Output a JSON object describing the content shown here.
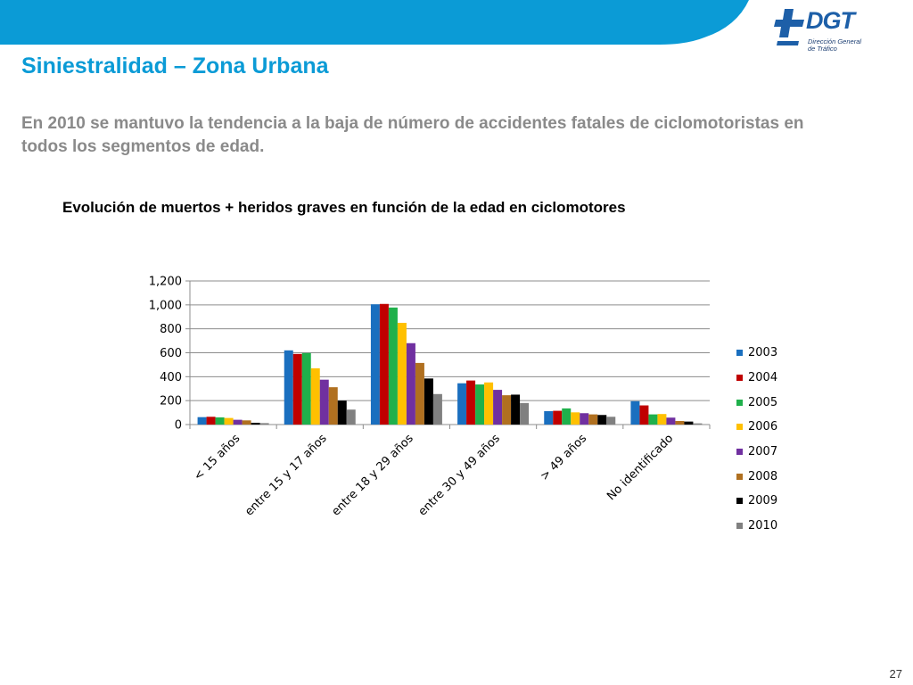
{
  "slide": {
    "title": "Siniestralidad – Zona Urbana",
    "subtitle": "En 2010 se mantuvo la tendencia a la baja de número de accidentes fatales de ciclomotoristas en todos los segmentos de edad.",
    "page_number": "27"
  },
  "logo": {
    "name": "DGT",
    "line1": "Dirección General",
    "line2": "de Tráfico",
    "color": "#1d5fa8"
  },
  "colors": {
    "title": "#0b9bd6",
    "band": "#0b9bd6"
  },
  "chart_data": {
    "type": "bar",
    "title": "Evolución de muertos + heridos graves en función de la edad en ciclomotores",
    "categories": [
      "< 15 años",
      "entre 15 y 17 años",
      "entre 18 y 29 años",
      "entre 30 y 49 años",
      "> 49 años",
      "No identificado"
    ],
    "ylim": [
      0,
      1200
    ],
    "yticks": [
      0,
      200,
      400,
      600,
      800,
      1000,
      1200
    ],
    "ytick_labels": [
      "0",
      "200",
      "400",
      "600",
      "800",
      "1,000",
      "1,200"
    ],
    "grid": true,
    "legend": "right",
    "series": [
      {
        "name": "2003",
        "color": "#1a6fbf",
        "values": [
          62,
          620,
          1005,
          345,
          112,
          195
        ]
      },
      {
        "name": "2004",
        "color": "#c00000",
        "values": [
          65,
          590,
          1008,
          368,
          115,
          160
        ]
      },
      {
        "name": "2005",
        "color": "#1fb04b",
        "values": [
          60,
          598,
          978,
          335,
          135,
          85
        ]
      },
      {
        "name": "2006",
        "color": "#ffc000",
        "values": [
          55,
          470,
          850,
          352,
          102,
          88
        ]
      },
      {
        "name": "2007",
        "color": "#7030a0",
        "values": [
          40,
          375,
          680,
          290,
          95,
          58
        ]
      },
      {
        "name": "2008",
        "color": "#b07020",
        "values": [
          35,
          312,
          515,
          245,
          85,
          30
        ]
      },
      {
        "name": "2009",
        "color": "#000000",
        "values": [
          15,
          200,
          385,
          250,
          80,
          25
        ]
      },
      {
        "name": "2010",
        "color": "#808080",
        "values": [
          12,
          125,
          255,
          180,
          65,
          10
        ]
      }
    ]
  }
}
